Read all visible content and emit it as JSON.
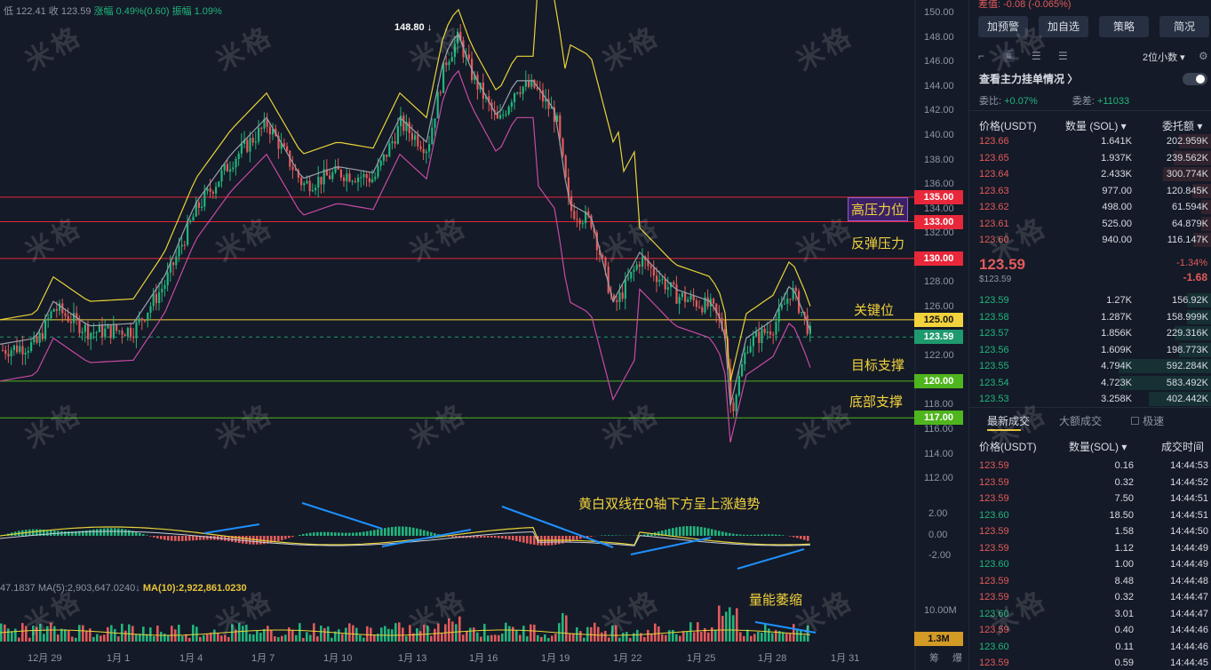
{
  "top_info": {
    "low": "低 122.41",
    "close": "收 123.59",
    "change": "涨幅 0.49%(0.60)",
    "amplitude": "振幅 1.09%"
  },
  "watermark": "米格",
  "high_marker": "148.80",
  "annotations": {
    "resistance_high": "高压力位",
    "rebound_resistance": "反弹压力",
    "key_level": "关键位",
    "target_support": "目标支撑",
    "bottom_support": "底部支撑",
    "macd_note": "黄白双线在0轴下方呈上涨趋势",
    "volume_note": "量能萎缩"
  },
  "price_tags": [
    {
      "label": "135.00",
      "color": "#e8283a"
    },
    {
      "label": "133.00",
      "color": "#e8283a"
    },
    {
      "label": "130.00",
      "color": "#e8283a"
    },
    {
      "label": "125.00",
      "color": "#f2d23d"
    },
    {
      "label": "123.59",
      "color": "#1f9a6e"
    },
    {
      "label": "120.00",
      "color": "#4fb51e"
    },
    {
      "label": "117.00",
      "color": "#4fb51e"
    }
  ],
  "y_axis": [
    "150.00",
    "148.00",
    "146.00",
    "144.00",
    "142.00",
    "140.00",
    "138.00",
    "136.00",
    "134.00",
    "132.00",
    "128.00",
    "126.00",
    "122.00",
    "118.00",
    "116.00",
    "114.00",
    "112.00"
  ],
  "macd_axis": [
    "2.00",
    "0.00",
    "-2.00"
  ],
  "x_axis": [
    "12月 29",
    "1月 1",
    "1月 4",
    "1月 7",
    "1月 10",
    "1月 13",
    "1月 16",
    "1月 19",
    "1月 22",
    "1月 25",
    "1月 28",
    "1月 31"
  ],
  "ma_line": {
    "ma5": "47.1837 MA(5):2,903,647.0240↓",
    "ma10": "MA(10):2,922,861.0230"
  },
  "volume_axis": "10.00M",
  "volume_tag": "1.3M",
  "footer_right": "筹 爆",
  "colors": {
    "up": "#21b57d",
    "down": "#e35a5a",
    "yellow": "#e8c43a",
    "pink": "#c74aa6"
  },
  "panel": {
    "top_text": "差值: -0.08 (-0.065%)",
    "buttons": [
      "加预警",
      "加自选",
      "策略",
      "简况"
    ],
    "decimals": "2位小数 ▾",
    "orderbook_title": "查看主力挂单情况 〉",
    "ratio_label": "委比:",
    "ratio_value": "+0.07%",
    "diff_label": "委差:",
    "diff_value": "+11033",
    "col_price": "价格(USDT)",
    "col_qty": "数量 (SOL) ▾",
    "col_amount": "委托额 ▾",
    "asks": [
      {
        "price": "123.66",
        "qty": "1.641K",
        "amount": "202.959K",
        "depth": 0.35
      },
      {
        "price": "123.65",
        "qty": "1.937K",
        "amount": "239.562K",
        "depth": 0.41
      },
      {
        "price": "123.64",
        "qty": "2.433K",
        "amount": "300.774K",
        "depth": 0.52
      },
      {
        "price": "123.63",
        "qty": "977.00",
        "amount": "120.845K",
        "depth": 0.21
      },
      {
        "price": "123.62",
        "qty": "498.00",
        "amount": "61.594K",
        "depth": 0.11
      },
      {
        "price": "123.61",
        "qty": "525.00",
        "amount": "64.879K",
        "depth": 0.11
      },
      {
        "price": "123.60",
        "qty": "940.00",
        "amount": "116.147K",
        "depth": 0.2
      }
    ],
    "last_price": "123.59",
    "last_sub": "$123.59",
    "change_pct": "-1.34%",
    "change_abs": "-1.68",
    "bids": [
      {
        "price": "123.59",
        "qty": "1.27K",
        "amount": "156.92K",
        "depth": 0.27
      },
      {
        "price": "123.58",
        "qty": "1.287K",
        "amount": "158.999K",
        "depth": 0.27
      },
      {
        "price": "123.57",
        "qty": "1.856K",
        "amount": "229.316K",
        "depth": 0.4
      },
      {
        "price": "123.56",
        "qty": "1.609K",
        "amount": "198.773K",
        "depth": 0.35
      },
      {
        "price": "123.55",
        "qty": "4.794K",
        "amount": "592.284K",
        "depth": 1.0
      },
      {
        "price": "123.54",
        "qty": "4.723K",
        "amount": "583.492K",
        "depth": 0.99
      },
      {
        "price": "123.53",
        "qty": "3.258K",
        "amount": "402.442K",
        "depth": 0.68
      }
    ],
    "tabs": [
      "最新成交",
      "大额成交",
      "极速"
    ],
    "trade_col_price": "价格(USDT)",
    "trade_col_qty": "数量(SOL) ▾",
    "trade_col_time": "成交时间",
    "trades": [
      {
        "price": "123.59",
        "qty": "0.16",
        "time": "14:44:53",
        "side": "down"
      },
      {
        "price": "123.59",
        "qty": "0.32",
        "time": "14:44:52",
        "side": "down"
      },
      {
        "price": "123.59",
        "qty": "7.50",
        "time": "14:44:51",
        "side": "down"
      },
      {
        "price": "123.60",
        "qty": "18.50",
        "time": "14:44:51",
        "side": "up"
      },
      {
        "price": "123.59",
        "qty": "1.58",
        "time": "14:44:50",
        "side": "down"
      },
      {
        "price": "123.59",
        "qty": "1.12",
        "time": "14:44:49",
        "side": "down"
      },
      {
        "price": "123.60",
        "qty": "1.00",
        "time": "14:44:49",
        "side": "up"
      },
      {
        "price": "123.59",
        "qty": "8.48",
        "time": "14:44:48",
        "side": "down"
      },
      {
        "price": "123.59",
        "qty": "0.32",
        "time": "14:44:47",
        "side": "down"
      },
      {
        "price": "123.60",
        "qty": "3.01",
        "time": "14:44:47",
        "side": "up"
      },
      {
        "price": "123.59",
        "qty": "0.40",
        "time": "14:44:46",
        "side": "down"
      },
      {
        "price": "123.60",
        "qty": "0.11",
        "time": "14:44:46",
        "side": "up"
      },
      {
        "price": "123.59",
        "qty": "0.59",
        "time": "14:44:45",
        "side": "down"
      }
    ]
  }
}
